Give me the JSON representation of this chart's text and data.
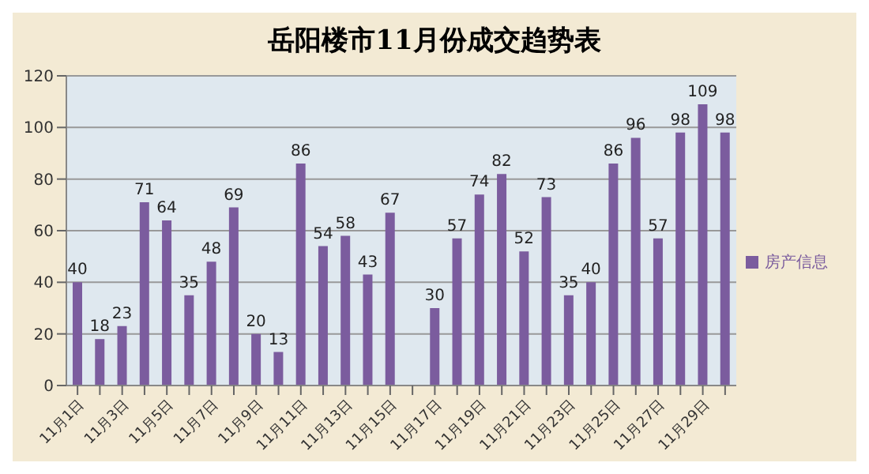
{
  "chart_data": {
    "type": "bar",
    "title": "岳阳楼市11月份成交趋势表",
    "categories": [
      "11月1日",
      null,
      "11月3日",
      null,
      "11月5日",
      null,
      "11月7日",
      null,
      "11月9日",
      null,
      "11月11日",
      null,
      "11月13日",
      null,
      "11月15日",
      null,
      "11月17日",
      null,
      "11月19日",
      null,
      "11月21日",
      null,
      "11月23日",
      null,
      "11月25日",
      null,
      "11月27日",
      null,
      "11月29日",
      null
    ],
    "series": [
      {
        "name": "房产信息",
        "color": "#7b5c9e",
        "values": [
          40,
          18,
          23,
          71,
          64,
          35,
          48,
          69,
          20,
          13,
          86,
          54,
          58,
          43,
          67,
          null,
          30,
          57,
          74,
          82,
          52,
          73,
          35,
          40,
          86,
          96,
          57,
          98,
          109,
          98
        ]
      }
    ],
    "ylim": [
      0,
      120
    ],
    "yticks": [
      0,
      20,
      40,
      60,
      80,
      100,
      120
    ],
    "grid": "y",
    "legend": "right",
    "data_labels": true
  }
}
